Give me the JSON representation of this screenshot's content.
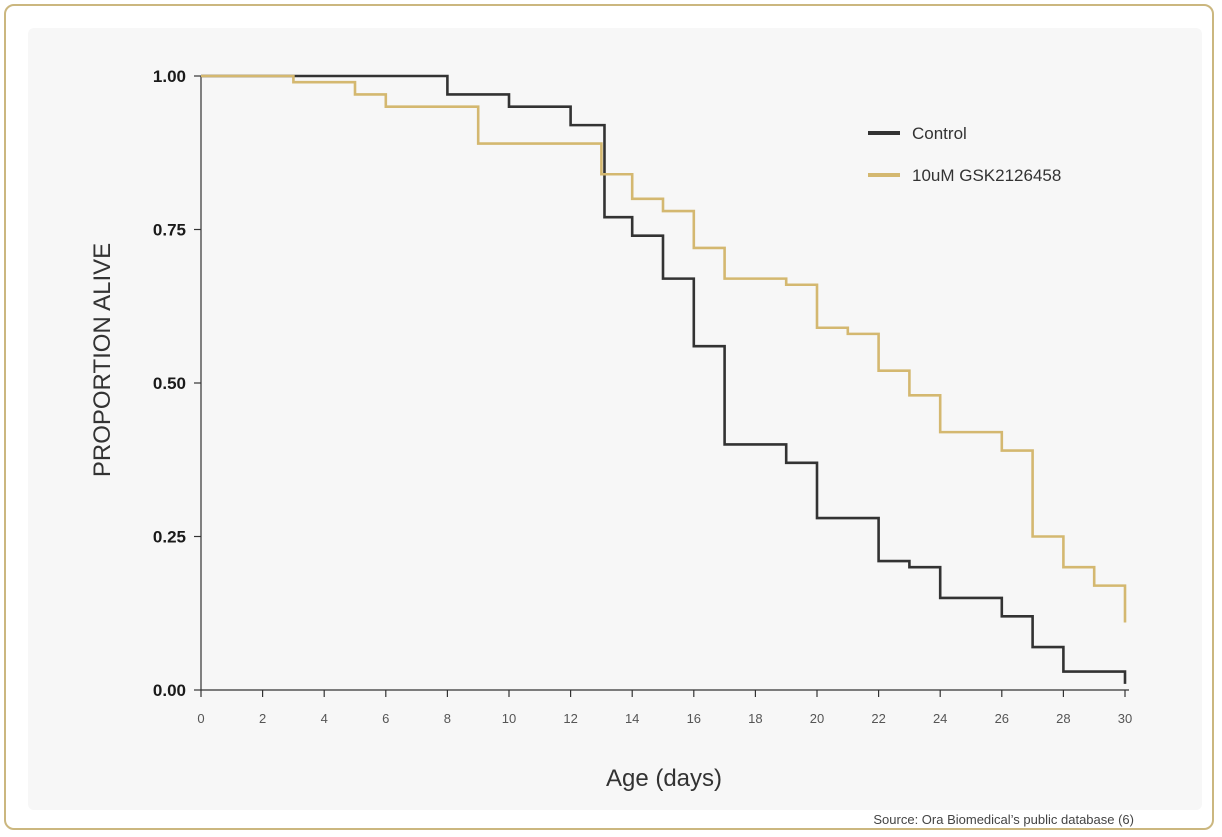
{
  "chart_data": {
    "type": "line",
    "step": true,
    "xlabel": "Age (days)",
    "ylabel": "PROPORTION ALIVE",
    "xlim": [
      0,
      30
    ],
    "ylim": [
      0,
      1
    ],
    "xticks": [
      "0",
      "2",
      "4",
      "6",
      "8",
      "10",
      "12",
      "14",
      "16",
      "18",
      "20",
      "22",
      "24",
      "26",
      "28",
      "30"
    ],
    "yticks": [
      "0.00",
      "0.25",
      "0.50",
      "0.75",
      "1.00"
    ],
    "legend_position": "top-right",
    "source": "Source: Ora Biomedical’s public database (6)",
    "series": [
      {
        "name": "Control",
        "color": "#333333",
        "x": [
          0,
          8,
          10,
          12,
          13,
          13.1,
          14,
          15,
          16,
          17,
          19,
          20,
          22,
          23,
          24,
          26,
          27,
          28,
          30
        ],
        "y": [
          1.0,
          0.97,
          0.95,
          0.92,
          0.92,
          0.77,
          0.74,
          0.67,
          0.56,
          0.4,
          0.37,
          0.28,
          0.21,
          0.2,
          0.15,
          0.12,
          0.07,
          0.03,
          0.01
        ]
      },
      {
        "name": "10uM GSK2126458",
        "color": "#d4b870",
        "x": [
          0,
          3,
          5,
          6,
          9,
          13,
          14,
          15,
          16,
          17,
          19,
          20,
          21,
          22,
          23,
          24,
          26,
          27,
          28,
          29,
          30
        ],
        "y": [
          1.0,
          0.99,
          0.97,
          0.95,
          0.89,
          0.84,
          0.8,
          0.78,
          0.72,
          0.67,
          0.66,
          0.59,
          0.58,
          0.52,
          0.48,
          0.42,
          0.39,
          0.25,
          0.2,
          0.17,
          0.11
        ]
      }
    ]
  }
}
